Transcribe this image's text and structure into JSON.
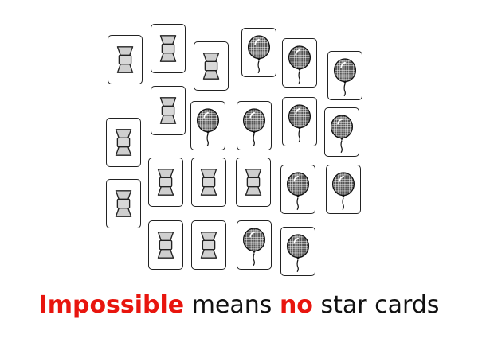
{
  "icons": {
    "bowtie": "bowtie-icon",
    "balloon": "balloon-icon"
  },
  "colors": {
    "emphasis": "#e8150e",
    "text": "#111111",
    "card_border": "#222222",
    "bowtie_fill": "#cfcfcf",
    "balloon_fill": "#555555"
  },
  "cards": [
    {
      "icon": "bowtie"
    },
    {
      "icon": "bowtie"
    },
    {
      "icon": "bowtie"
    },
    {
      "icon": "balloon"
    },
    {
      "icon": "balloon"
    },
    {
      "icon": "balloon"
    },
    {
      "icon": "bowtie"
    },
    {
      "icon": "bowtie"
    },
    {
      "icon": "balloon"
    },
    {
      "icon": "balloon"
    },
    {
      "icon": "balloon"
    },
    {
      "icon": "balloon"
    },
    {
      "icon": "bowtie"
    },
    {
      "icon": "bowtie"
    },
    {
      "icon": "bowtie"
    },
    {
      "icon": "bowtie"
    },
    {
      "icon": "balloon"
    },
    {
      "icon": "balloon"
    },
    {
      "icon": "bowtie"
    },
    {
      "icon": "bowtie"
    },
    {
      "icon": "balloon"
    },
    {
      "icon": "balloon"
    }
  ],
  "caption": {
    "word1": "Impossible",
    "word2": " means ",
    "word3": "no",
    "word4": " star cards"
  }
}
